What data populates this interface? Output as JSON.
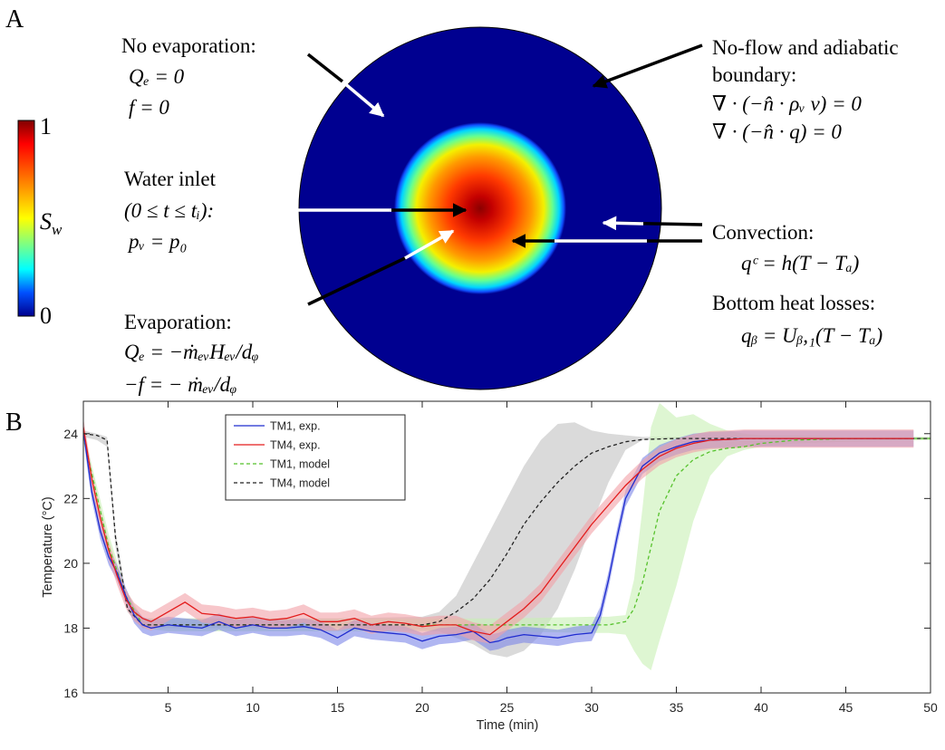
{
  "panel_a": {
    "label": "A",
    "colorbar": {
      "max_label": "1",
      "min_label": "0",
      "var_label": "S",
      "var_sub": "w"
    },
    "annotations": {
      "no_evap": {
        "title": "No evaporation:",
        "eq1": "Qₑ = 0",
        "eq2": "f = 0"
      },
      "no_flow": {
        "title1": "No-flow and adiabatic",
        "title2": "boundary:",
        "eq1": "∇ · (−n̂ · ρᵥ v) = 0",
        "eq2": "∇ · (−n̂ · q) = 0"
      },
      "water_inlet": {
        "title": "Water inlet",
        "cond": "(0 ≤ t ≤ tᵢ):",
        "eq": "pᵥ = p₀"
      },
      "convection": {
        "title": "Convection:",
        "eq": "qᶜ = h(T − Tₐ)"
      },
      "bottom": {
        "title": "Bottom heat losses:",
        "eq": "qᵦ = Uᵦ,₁(T − Tₐ)"
      },
      "evaporation": {
        "title": "Evaporation:",
        "eq1": "Qₑ = −ṁₑᵥHₑᵥ/dᵩ",
        "eq2": "−f = − ṁₑᵥ/dᵩ"
      }
    }
  },
  "panel_b": {
    "label": "B"
  },
  "chart_data": {
    "type": "line",
    "title": "",
    "xlabel": "Time (min)",
    "ylabel": "Temperature (°C)",
    "xlim": [
      0,
      50
    ],
    "ylim": [
      16,
      25
    ],
    "xticks": [
      5,
      10,
      15,
      20,
      25,
      30,
      35,
      40,
      45,
      50
    ],
    "yticks": [
      16,
      18,
      20,
      22,
      24
    ],
    "legend_position": "top-center",
    "series": [
      {
        "name": "TM1, exp.",
        "style": "solid",
        "color": "#1f2ccf",
        "band_color": "#7b86e8",
        "band_width": 0.25,
        "x": [
          0,
          0.5,
          1,
          1.5,
          2,
          2.5,
          3,
          3.5,
          4,
          5,
          6,
          7,
          8,
          9,
          10,
          11,
          12,
          13,
          14,
          15,
          16,
          17,
          18,
          19,
          20,
          21,
          22,
          23,
          24,
          24.5,
          25,
          26,
          27,
          28,
          29,
          30,
          30.5,
          31,
          31.5,
          32,
          33,
          34,
          35,
          36,
          37,
          38,
          39,
          40,
          42,
          45,
          47,
          49
        ],
        "y": [
          24.1,
          22.2,
          21.0,
          20.2,
          19.7,
          19.0,
          18.4,
          18.1,
          18.0,
          18.1,
          18.05,
          18.0,
          18.2,
          18.0,
          18.1,
          18.0,
          18.0,
          18.05,
          17.95,
          17.7,
          18.0,
          17.9,
          17.85,
          17.8,
          17.6,
          17.75,
          17.8,
          17.9,
          17.55,
          17.6,
          17.7,
          17.8,
          17.75,
          17.7,
          17.8,
          17.85,
          18.4,
          19.5,
          20.8,
          22.0,
          23.0,
          23.4,
          23.6,
          23.75,
          23.8,
          23.82,
          23.85,
          23.85,
          23.85,
          23.85,
          23.85,
          23.85
        ]
      },
      {
        "name": "TM4, exp.",
        "style": "solid",
        "color": "#e31c1c",
        "band_color": "#f2a0a6",
        "band_width": 0.28,
        "x": [
          0,
          0.5,
          1,
          1.5,
          2,
          2.5,
          3,
          3.5,
          4,
          5,
          6,
          7,
          8,
          9,
          10,
          11,
          12,
          13,
          14,
          15,
          16,
          17,
          18,
          19,
          20,
          21,
          22,
          23,
          24,
          25,
          26,
          27,
          28,
          29,
          30,
          31,
          32,
          33,
          34,
          35,
          36,
          37,
          38,
          39,
          40,
          42,
          45,
          47,
          49
        ],
        "y": [
          24.2,
          22.6,
          21.4,
          20.4,
          19.6,
          18.9,
          18.5,
          18.3,
          18.2,
          18.5,
          18.8,
          18.45,
          18.4,
          18.3,
          18.35,
          18.25,
          18.3,
          18.45,
          18.2,
          18.2,
          18.3,
          18.1,
          18.2,
          18.15,
          18.05,
          18.1,
          18.1,
          17.9,
          17.8,
          18.2,
          18.6,
          19.1,
          19.8,
          20.5,
          21.2,
          21.8,
          22.4,
          22.9,
          23.3,
          23.55,
          23.7,
          23.8,
          23.82,
          23.85,
          23.85,
          23.85,
          23.85,
          23.85,
          23.85
        ]
      },
      {
        "name": "TM1, model",
        "style": "dashed",
        "color": "#55c12b",
        "band_color": "#c8f0b4",
        "band_lower": [
          23.8,
          20.3,
          18.9,
          18.0,
          17.9,
          17.9,
          17.9,
          17.9,
          17.9,
          17.85,
          17.85,
          17.8,
          17.3,
          16.9,
          16.7,
          17.6,
          19.3,
          21.3,
          22.7,
          23.3,
          23.5,
          23.6,
          23.7,
          23.75,
          23.8
        ],
        "band_upper": [
          24.1,
          20.9,
          19.2,
          18.3,
          18.3,
          18.3,
          18.3,
          18.3,
          18.3,
          18.35,
          18.35,
          18.4,
          19.5,
          21.7,
          24.2,
          24.95,
          24.5,
          24.6,
          24.3,
          24.1,
          24.0,
          23.95,
          23.95,
          23.9,
          23.9
        ],
        "x": [
          0,
          1.5,
          2.5,
          3.5,
          5,
          10,
          15,
          20,
          25,
          30,
          31,
          32,
          32.5,
          33,
          33.5,
          34,
          35,
          36,
          37,
          38,
          39,
          40,
          42,
          45,
          50
        ],
        "y": [
          23.9,
          20.5,
          19.0,
          18.1,
          18.1,
          18.1,
          18.1,
          18.1,
          18.1,
          18.1,
          18.1,
          18.2,
          18.6,
          19.4,
          20.5,
          21.6,
          22.7,
          23.2,
          23.45,
          23.55,
          23.6,
          23.7,
          23.8,
          23.85,
          23.85
        ]
      },
      {
        "name": "TM4, model",
        "style": "dashed",
        "color": "#222222",
        "band_color": "#c2c2c2",
        "band_lower": [
          23.9,
          23.8,
          23.6,
          20.5,
          18.5,
          18.0,
          18.0,
          18.0,
          18.0,
          17.95,
          17.9,
          17.7,
          17.5,
          17.2,
          17.1,
          17.3,
          17.8,
          18.6,
          19.8,
          21.2,
          22.5,
          23.5,
          23.8,
          23.85,
          23.85
        ],
        "band_upper": [
          24.1,
          24.0,
          23.9,
          21.0,
          18.8,
          18.3,
          18.3,
          18.3,
          18.3,
          18.35,
          18.5,
          19.0,
          20.0,
          21.0,
          22.0,
          23.0,
          23.8,
          24.3,
          24.35,
          24.1,
          24.0,
          23.95,
          23.9,
          23.9,
          23.9
        ],
        "x": [
          0,
          0.8,
          1.4,
          1.9,
          2.6,
          3.5,
          5,
          10,
          15,
          20,
          21,
          22,
          23,
          24,
          25,
          26,
          27,
          28,
          29,
          30,
          31,
          32,
          33,
          35,
          50
        ],
        "y": [
          24.0,
          23.95,
          23.8,
          20.8,
          18.6,
          18.1,
          18.1,
          18.1,
          18.1,
          18.1,
          18.2,
          18.5,
          18.9,
          19.5,
          20.3,
          21.2,
          21.9,
          22.5,
          23.0,
          23.4,
          23.6,
          23.75,
          23.82,
          23.85,
          23.85
        ]
      }
    ]
  }
}
